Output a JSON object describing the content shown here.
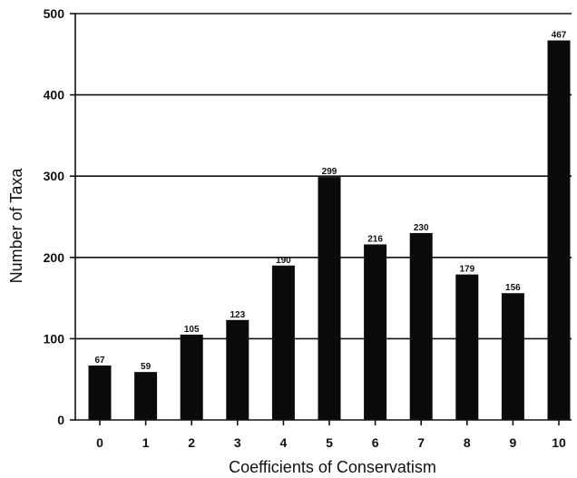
{
  "chart_data": {
    "type": "bar",
    "title": "",
    "xlabel": "Coefficients of Conservatism",
    "ylabel": "Number of Taxa",
    "categories": [
      "0",
      "1",
      "2",
      "3",
      "4",
      "5",
      "6",
      "7",
      "8",
      "9",
      "10"
    ],
    "values": [
      67,
      59,
      105,
      123,
      190,
      299,
      216,
      230,
      179,
      156,
      467
    ],
    "data_labels": [
      "67",
      "59",
      "105",
      "123",
      "190",
      "299",
      "216",
      "230",
      "179",
      "156",
      "467"
    ],
    "ylim": [
      0,
      500
    ],
    "yticks": [
      0,
      100,
      200,
      300,
      400,
      500
    ],
    "ytick_labels": [
      "0",
      "100",
      "200",
      "300",
      "400",
      "500"
    ],
    "grid": "horizontal",
    "legend": "none",
    "bar_color": "#0a0a0a"
  }
}
